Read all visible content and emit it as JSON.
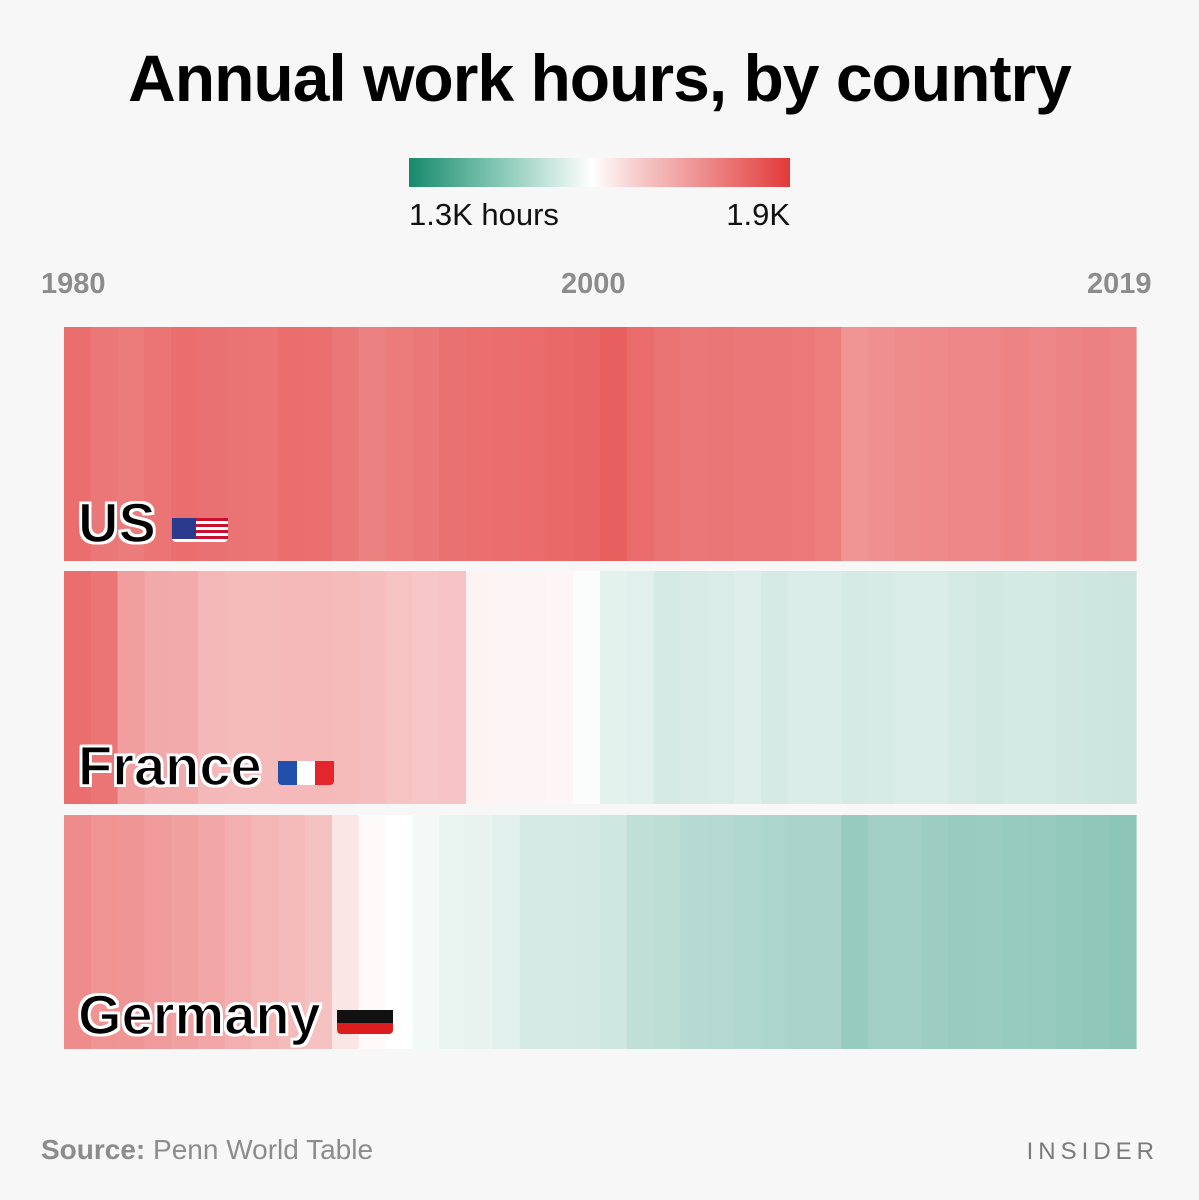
{
  "title": "Annual work hours, by country",
  "legend": {
    "low_label": "1.3K hours",
    "high_label": "1.9K",
    "low": 1300,
    "high": 1900,
    "low_color": "#178a6c",
    "mid_color": "#ffffff",
    "high_color": "#e23a3a"
  },
  "axis": {
    "start_label": "1980",
    "mid_label": "2000",
    "end_label": "2019"
  },
  "source": {
    "prefix": "Source:",
    "text": "Penn World Table"
  },
  "brand": "INSIDER",
  "chart_data": {
    "type": "heatmap",
    "title": "Annual work hours, by country",
    "x": [
      1980,
      1981,
      1982,
      1983,
      1984,
      1985,
      1986,
      1987,
      1988,
      1989,
      1990,
      1991,
      1992,
      1993,
      1994,
      1995,
      1996,
      1997,
      1998,
      1999,
      2000,
      2001,
      2002,
      2003,
      2004,
      2005,
      2006,
      2007,
      2008,
      2009,
      2010,
      2011,
      2012,
      2013,
      2014,
      2015,
      2016,
      2017,
      2018,
      2019
    ],
    "series": [
      {
        "name": "US",
        "flag": "us-flag-icon",
        "values": [
          1815,
          1800,
          1795,
          1805,
          1815,
          1810,
          1808,
          1805,
          1815,
          1812,
          1800,
          1785,
          1793,
          1800,
          1810,
          1812,
          1815,
          1820,
          1825,
          1828,
          1840,
          1820,
          1808,
          1800,
          1802,
          1800,
          1800,
          1798,
          1790,
          1756,
          1762,
          1768,
          1770,
          1773,
          1775,
          1780,
          1776,
          1780,
          1785,
          1778
        ]
      },
      {
        "name": "France",
        "flag": "france-flag-icon",
        "values": [
          1815,
          1805,
          1738,
          1720,
          1718,
          1695,
          1692,
          1690,
          1694,
          1693,
          1690,
          1688,
          1678,
          1672,
          1676,
          1600,
          1597,
          1597,
          1595,
          1575,
          1548,
          1545,
          1530,
          1533,
          1535,
          1540,
          1530,
          1535,
          1536,
          1530,
          1532,
          1535,
          1535,
          1530,
          1525,
          1527,
          1527,
          1523,
          1520,
          1518
        ]
      },
      {
        "name": "Germany",
        "flag": "germany-flag-icon",
        "values": [
          1768,
          1755,
          1752,
          1743,
          1735,
          1725,
          1710,
          1700,
          1690,
          1680,
          1620,
          1590,
          1580,
          1565,
          1555,
          1552,
          1545,
          1530,
          1530,
          1528,
          1522,
          1504,
          1498,
          1492,
          1490,
          1486,
          1480,
          1478,
          1478,
          1455,
          1468,
          1468,
          1460,
          1457,
          1458,
          1455,
          1452,
          1450,
          1447,
          1442
        ]
      }
    ],
    "value_range": [
      1300,
      1900
    ],
    "xlabel": "",
    "ylabel": ""
  }
}
